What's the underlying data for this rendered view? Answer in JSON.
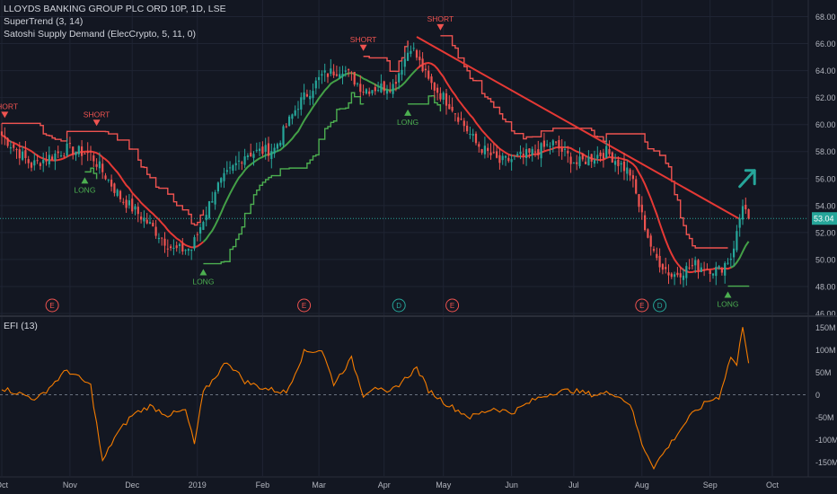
{
  "header": {
    "symbol_line": "LLOYDS BANKING GROUP PLC ORD 10P, 1D, LSE",
    "indicator1": "SuperTrend (3, 14)",
    "indicator2": "Satoshi Supply Demand (ElecCrypto, 5, 11, 0)",
    "lower_pane_title": "EFI (13)"
  },
  "colors": {
    "background": "#131722",
    "up": "#26a69a",
    "down": "#ef5350",
    "supertrend_red": "#ef5350",
    "supertrend_green": "#4caf50",
    "ma_red": "#e53935",
    "ma_green": "#43a047",
    "efi": "#f57c00",
    "last_price": "#26a69a",
    "trendline": "#e53935"
  },
  "chart_data": [
    {
      "type": "candlestick",
      "pane": "price",
      "ylim": [
        46,
        68.7
      ],
      "y_ticks": [
        "68.00",
        "66.00",
        "64.00",
        "62.00",
        "60.00",
        "58.00",
        "56.00",
        "54.00",
        "52.00",
        "50.00",
        "48.00",
        "46.00"
      ],
      "x_ticks": [
        "Oct",
        "Nov",
        "Dec",
        "2019",
        "Feb",
        "Mar",
        "Apr",
        "May",
        "Jun",
        "Jul",
        "Aug",
        "Sep",
        "Oct"
      ],
      "last_price": 53.04,
      "last_price_label": "53.04",
      "key_closes": [
        {
          "x": 0,
          "y": 59.2
        },
        {
          "x": 10,
          "y": 57.0
        },
        {
          "x": 22,
          "y": 58.2
        },
        {
          "x": 30,
          "y": 57.8
        },
        {
          "x": 40,
          "y": 54.6
        },
        {
          "x": 48,
          "y": 53.0
        },
        {
          "x": 58,
          "y": 50.7
        },
        {
          "x": 64,
          "y": 50.8
        },
        {
          "x": 72,
          "y": 55.2
        },
        {
          "x": 82,
          "y": 57.8
        },
        {
          "x": 92,
          "y": 58.2
        },
        {
          "x": 100,
          "y": 61.5
        },
        {
          "x": 108,
          "y": 63.6
        },
        {
          "x": 115,
          "y": 64.2
        },
        {
          "x": 122,
          "y": 62.6
        },
        {
          "x": 132,
          "y": 62.9
        },
        {
          "x": 138,
          "y": 65.9
        },
        {
          "x": 144,
          "y": 63.2
        },
        {
          "x": 152,
          "y": 61.3
        },
        {
          "x": 160,
          "y": 58.6
        },
        {
          "x": 168,
          "y": 57.2
        },
        {
          "x": 178,
          "y": 57.8
        },
        {
          "x": 186,
          "y": 58.6
        },
        {
          "x": 194,
          "y": 57.1
        },
        {
          "x": 204,
          "y": 58.0
        },
        {
          "x": 212,
          "y": 56.4
        },
        {
          "x": 216,
          "y": 53.2
        },
        {
          "x": 220,
          "y": 50.3
        },
        {
          "x": 226,
          "y": 48.8
        },
        {
          "x": 234,
          "y": 49.6
        },
        {
          "x": 242,
          "y": 49.2
        },
        {
          "x": 246,
          "y": 50.2
        },
        {
          "x": 248,
          "y": 51.9
        },
        {
          "x": 250,
          "y": 54.2
        },
        {
          "x": 252,
          "y": 53.0
        }
      ],
      "signals": [
        {
          "label": "SHORT",
          "x": 1,
          "type": "short"
        },
        {
          "label": "SHORT",
          "x": 32,
          "type": "short"
        },
        {
          "label": "LONG",
          "x": 28,
          "type": "long"
        },
        {
          "label": "LONG",
          "x": 68,
          "type": "long"
        },
        {
          "label": "SHORT",
          "x": 122,
          "type": "short"
        },
        {
          "label": "LONG",
          "x": 137,
          "type": "long"
        },
        {
          "label": "SHORT",
          "x": 148,
          "type": "short"
        },
        {
          "label": "LONG",
          "x": 245,
          "type": "long"
        }
      ],
      "event_markers": [
        {
          "label": "E",
          "x": 17
        },
        {
          "label": "E",
          "x": 102
        },
        {
          "label": "D",
          "x": 134
        },
        {
          "label": "E",
          "x": 152
        },
        {
          "label": "E",
          "x": 216
        },
        {
          "label": "D",
          "x": 222
        }
      ]
    },
    {
      "type": "line",
      "pane": "efi",
      "name": "EFI (13)",
      "ylim": [
        -175,
        165
      ],
      "y_ticks": [
        "150M",
        "100M",
        "50M",
        "0",
        "-50M",
        "-100M",
        "-150M"
      ],
      "key_values": [
        {
          "x": 0,
          "y": 15
        },
        {
          "x": 12,
          "y": -10
        },
        {
          "x": 22,
          "y": 55
        },
        {
          "x": 30,
          "y": 20
        },
        {
          "x": 34,
          "y": -150
        },
        {
          "x": 38,
          "y": -95
        },
        {
          "x": 44,
          "y": -45
        },
        {
          "x": 50,
          "y": -25
        },
        {
          "x": 56,
          "y": -45
        },
        {
          "x": 62,
          "y": -35
        },
        {
          "x": 65,
          "y": -110
        },
        {
          "x": 68,
          "y": 5
        },
        {
          "x": 76,
          "y": 75
        },
        {
          "x": 82,
          "y": 30
        },
        {
          "x": 88,
          "y": 15
        },
        {
          "x": 96,
          "y": 5
        },
        {
          "x": 102,
          "y": 95
        },
        {
          "x": 108,
          "y": 100
        },
        {
          "x": 112,
          "y": 25
        },
        {
          "x": 118,
          "y": 80
        },
        {
          "x": 122,
          "y": 0
        },
        {
          "x": 126,
          "y": 20
        },
        {
          "x": 130,
          "y": 0
        },
        {
          "x": 136,
          "y": 35
        },
        {
          "x": 140,
          "y": 60
        },
        {
          "x": 144,
          "y": 10
        },
        {
          "x": 150,
          "y": -20
        },
        {
          "x": 158,
          "y": -50
        },
        {
          "x": 166,
          "y": -30
        },
        {
          "x": 172,
          "y": -40
        },
        {
          "x": 180,
          "y": -10
        },
        {
          "x": 186,
          "y": 5
        },
        {
          "x": 192,
          "y": 10
        },
        {
          "x": 200,
          "y": 0
        },
        {
          "x": 206,
          "y": 5
        },
        {
          "x": 212,
          "y": -20
        },
        {
          "x": 216,
          "y": -110
        },
        {
          "x": 220,
          "y": -160
        },
        {
          "x": 226,
          "y": -105
        },
        {
          "x": 232,
          "y": -50
        },
        {
          "x": 238,
          "y": -15
        },
        {
          "x": 242,
          "y": -5
        },
        {
          "x": 246,
          "y": 85
        },
        {
          "x": 248,
          "y": 65
        },
        {
          "x": 250,
          "y": 155
        },
        {
          "x": 252,
          "y": 75
        }
      ]
    }
  ]
}
